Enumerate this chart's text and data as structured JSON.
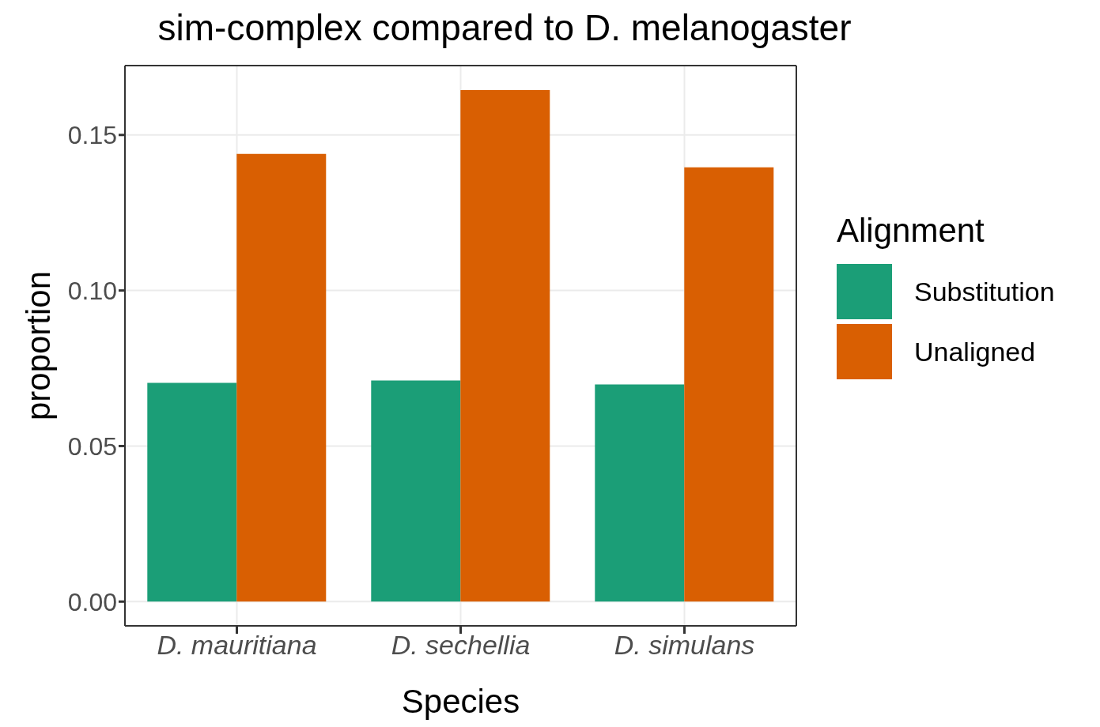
{
  "chart_data": {
    "type": "bar",
    "title": "sim-complex compared to D. melanogaster",
    "xlabel": "Species",
    "ylabel": "proportion",
    "legend_title": "Alignment",
    "categories": [
      "D. mauritiana",
      "D. sechellia",
      "D. simulans"
    ],
    "series": [
      {
        "name": "Substitution",
        "color": "#1b9e77",
        "values": [
          0.0703,
          0.0711,
          0.0698
        ]
      },
      {
        "name": "Unaligned",
        "color": "#d95f02",
        "values": [
          0.1439,
          0.1644,
          0.1396
        ]
      }
    ],
    "ylim": [
      -0.0078,
      0.1723
    ],
    "yticks": [
      {
        "value": 0,
        "label": "0.00"
      },
      {
        "value": 0.05,
        "label": "0.05"
      },
      {
        "value": 0.1,
        "label": "0.10"
      },
      {
        "value": 0.15,
        "label": "0.15"
      }
    ],
    "grid": true,
    "legend": "right"
  }
}
